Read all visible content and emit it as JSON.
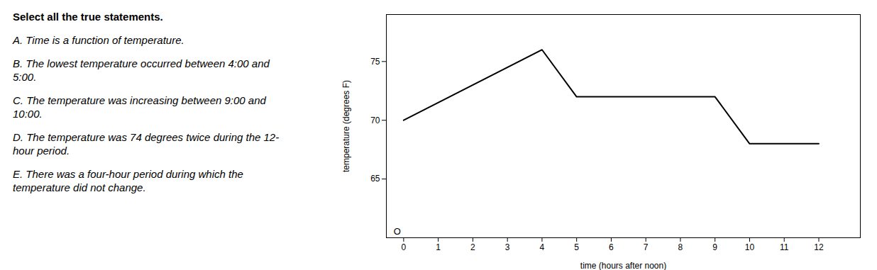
{
  "chart_data": {
    "type": "line",
    "title": "Select all the true statements.",
    "x": [
      0,
      4,
      5,
      9,
      10,
      12
    ],
    "values": [
      70,
      76,
      72,
      72,
      68,
      68
    ],
    "color": "#000000",
    "xlabel": "time (hours after noon)",
    "ylabel": "temperature (degrees F)",
    "xlim": [
      -0.5,
      13.2
    ],
    "ylim": [
      60,
      79
    ],
    "xticks": [
      0,
      1,
      2,
      3,
      4,
      5,
      6,
      7,
      8,
      9,
      10,
      11,
      12
    ],
    "yticks": [
      65,
      70,
      75
    ],
    "grid": false,
    "annotations": [
      {
        "text": "A. Time is a function of temperature."
      },
      {
        "text": "B. The lowest temperature occurred between 4:00 and\n5:00."
      },
      {
        "text": "C. The temperature was increasing between 9:00 and\n10:00."
      },
      {
        "text": "D. The temperature was 74 degrees twice during the 12-\nhour period."
      },
      {
        "text": "E. There was a four-hour period during which the\ntemperature did not change."
      },
      {
        "text": "O",
        "x": 0,
        "y": 60
      }
    ]
  }
}
